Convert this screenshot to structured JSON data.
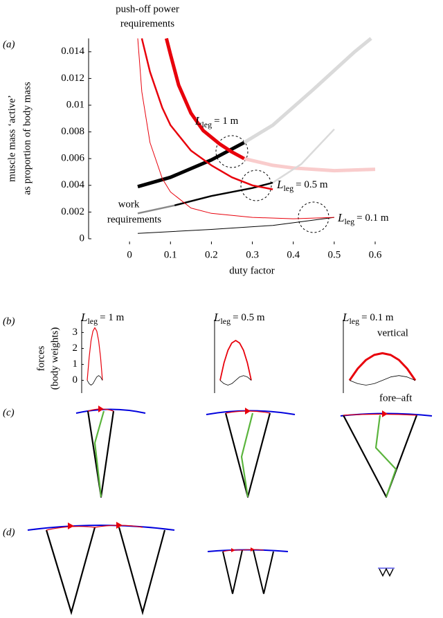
{
  "panels": [
    "(a)",
    "(b)",
    "(c)",
    "(d)"
  ],
  "chart_data": [
    {
      "type": "line",
      "power_label": [
        "push-off power",
        "requirements"
      ],
      "work_label": [
        "work",
        "requirements"
      ],
      "xlabel": "duty factor",
      "ylabel": [
        "muscle mass ‘active’",
        "as proportion of body mass"
      ],
      "xlim": [
        -0.1,
        0.6
      ],
      "xticks": [
        0,
        0.1,
        0.2,
        0.3,
        0.4,
        0.5,
        0.6
      ],
      "ylim": [
        0,
        0.015
      ],
      "yticks": [
        0,
        0.002,
        0.004,
        0.006,
        0.008,
        0.01,
        0.012,
        0.014
      ],
      "leg_labels": [
        {
          "symbol": "L",
          "sub": "leg",
          "text": "= 1 m"
        },
        {
          "symbol": "L",
          "sub": "leg",
          "text": "= 0.5 m"
        },
        {
          "symbol": "L",
          "sub": "leg",
          "text": "= 0.1 m"
        }
      ],
      "series": [
        {
          "color": "#dadada",
          "width": 5,
          "x": [
            0.28,
            0.35,
            0.45,
            0.55,
            0.59
          ],
          "values": [
            0.0072,
            0.0085,
            0.0112,
            0.014,
            0.015
          ]
        },
        {
          "color": "#f9cccc",
          "width": 5,
          "x": [
            0.28,
            0.35,
            0.4,
            0.5,
            0.6
          ],
          "values": [
            0.006,
            0.0055,
            0.0053,
            0.0051,
            0.0052
          ]
        },
        {
          "color": "#dadada",
          "width": 2.5,
          "x": [
            0.35,
            0.42,
            0.5
          ],
          "values": [
            0.0042,
            0.0056,
            0.0082
          ]
        },
        {
          "color": "#888888",
          "width": 2.5,
          "x": [
            0.02,
            0.11
          ],
          "values": [
            0.0019,
            0.0025
          ]
        },
        {
          "color": "#000000",
          "width": 5,
          "x": [
            0.02,
            0.1,
            0.2,
            0.28
          ],
          "values": [
            0.0039,
            0.0046,
            0.0059,
            0.0072
          ]
        },
        {
          "color": "#e8000b",
          "width": 5,
          "x": [
            0.09,
            0.1,
            0.12,
            0.15,
            0.18,
            0.22,
            0.25,
            0.28
          ],
          "values": [
            0.015,
            0.0138,
            0.0115,
            0.0094,
            0.0081,
            0.0071,
            0.0065,
            0.006
          ]
        },
        {
          "color": "#000000",
          "width": 2.5,
          "x": [
            0.11,
            0.2,
            0.3,
            0.35
          ],
          "values": [
            0.0025,
            0.0032,
            0.0038,
            0.0042
          ]
        },
        {
          "color": "#e8000b",
          "width": 2.5,
          "x": [
            0.03,
            0.05,
            0.08,
            0.1,
            0.15,
            0.2,
            0.25,
            0.3,
            0.35
          ],
          "values": [
            0.015,
            0.0125,
            0.0098,
            0.0085,
            0.0066,
            0.0055,
            0.0046,
            0.004,
            0.0037
          ]
        },
        {
          "color": "#000000",
          "width": 1,
          "x": [
            0.02,
            0.2,
            0.35,
            0.5
          ],
          "values": [
            0.0004,
            0.0007,
            0.001,
            0.0016
          ]
        },
        {
          "color": "#e8000b",
          "width": 1,
          "x": [
            0.02,
            0.03,
            0.05,
            0.08,
            0.1,
            0.15,
            0.2,
            0.3,
            0.4,
            0.5
          ],
          "values": [
            0.015,
            0.011,
            0.0072,
            0.0045,
            0.0035,
            0.0023,
            0.0019,
            0.0016,
            0.0015,
            0.0016
          ]
        }
      ]
    },
    {
      "type": "line",
      "subtitle": {
        "symbol": "L",
        "sub": "leg",
        "text": "= 1 m"
      },
      "ylabel": [
        "forces",
        "(body weights)"
      ],
      "ylim": [
        -0.8,
        3.8
      ],
      "yticks": [
        0,
        1,
        2,
        3
      ],
      "series": [
        {
          "color": "#e8000b",
          "width": 1.2,
          "x": [
            0,
            0.125,
            0.25,
            0.375,
            0.5,
            0.625,
            0.75,
            0.875,
            1
          ],
          "values": [
            0,
            1.44,
            2.48,
            3.09,
            3.3,
            3.09,
            2.48,
            1.44,
            0
          ]
        },
        {
          "color": "#000000",
          "width": 0.8,
          "x": [
            0,
            0.125,
            0.25,
            0.375,
            0.5,
            0.625,
            0.75,
            0.875,
            1
          ],
          "values": [
            0,
            -0.21,
            -0.3,
            -0.21,
            0,
            0.21,
            0.3,
            0.21,
            0
          ]
        }
      ]
    },
    {
      "type": "line",
      "subtitle": {
        "symbol": "L",
        "sub": "leg",
        "text": "= 0.5 m"
      },
      "ylim": [
        -0.8,
        3.8
      ],
      "series": [
        {
          "color": "#e8000b",
          "width": 1.8,
          "x": [
            0,
            0.125,
            0.25,
            0.375,
            0.5,
            0.625,
            0.75,
            0.875,
            1
          ],
          "values": [
            0,
            1.09,
            1.88,
            2.34,
            2.5,
            2.34,
            1.88,
            1.09,
            0
          ]
        },
        {
          "color": "#000000",
          "width": 0.8,
          "x": [
            0,
            0.125,
            0.25,
            0.375,
            0.5,
            0.625,
            0.75,
            0.875,
            1
          ],
          "values": [
            0,
            -0.21,
            -0.3,
            -0.21,
            0,
            0.21,
            0.3,
            0.21,
            0
          ]
        }
      ]
    },
    {
      "type": "line",
      "subtitle": {
        "symbol": "L",
        "sub": "leg",
        "text": "= 0.1 m"
      },
      "ylim": [
        -0.8,
        3.8
      ],
      "series": [
        {
          "name": "vertical",
          "color": "#e8000b",
          "width": 3,
          "x": [
            0,
            0.125,
            0.25,
            0.375,
            0.5,
            0.625,
            0.75,
            0.875,
            1
          ],
          "values": [
            0,
            0.74,
            1.28,
            1.59,
            1.7,
            1.59,
            1.28,
            0.74,
            0
          ]
        },
        {
          "name": "fore–aft",
          "color": "#000000",
          "width": 0.8,
          "x": [
            0,
            0.125,
            0.25,
            0.375,
            0.5,
            0.625,
            0.75,
            0.875,
            1
          ],
          "values": [
            0,
            -0.21,
            -0.3,
            -0.21,
            0,
            0.21,
            0.3,
            0.21,
            0
          ]
        }
      ]
    }
  ]
}
